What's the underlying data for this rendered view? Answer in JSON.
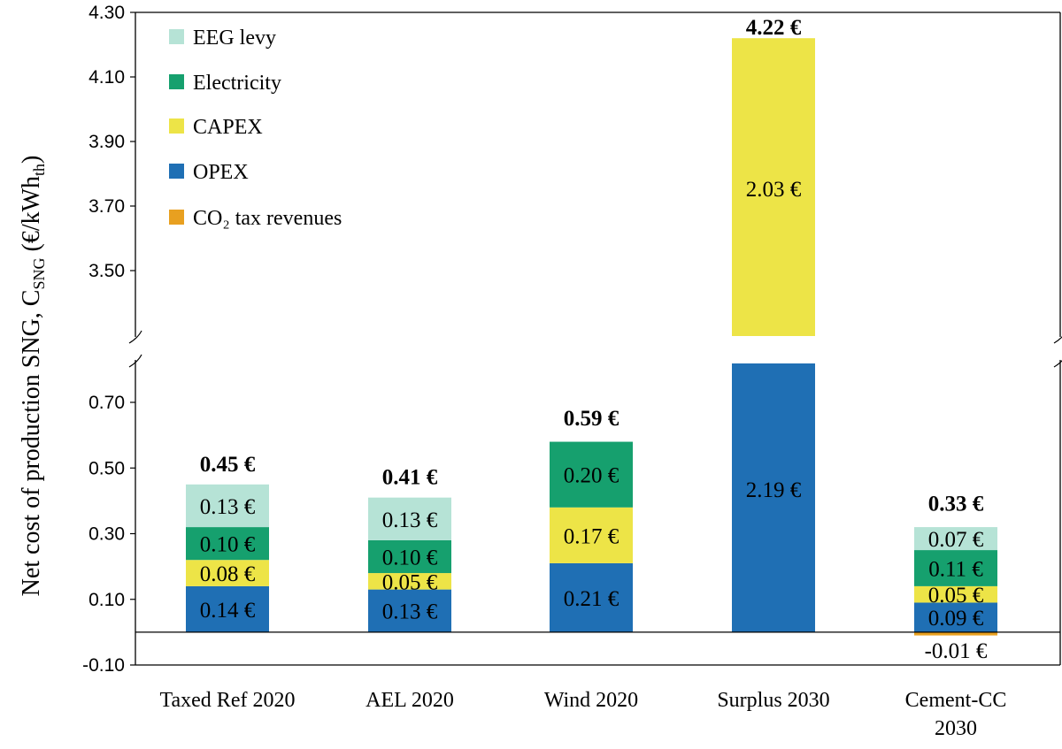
{
  "chart_data": {
    "type": "bar",
    "stacked": true,
    "ylabel": {
      "main": "Net cost of production SNG, C",
      "sub": "SNG",
      "unit_open": " (€/kWh",
      "unit_sub": "th",
      "unit_close": ")"
    },
    "y_axis_break": {
      "lower_range": [
        -0.1,
        0.8
      ],
      "upper_range": [
        3.32,
        4.3
      ]
    },
    "y_ticks_lower": [
      "0.70",
      "0.50",
      "0.30",
      "0.10",
      "-0.10"
    ],
    "y_ticks_upper": [
      "4.30",
      "4.10",
      "3.90",
      "3.70",
      "3.50"
    ],
    "categories": [
      {
        "lines": [
          "Taxed Ref 2020"
        ]
      },
      {
        "lines": [
          "AEL 2020"
        ]
      },
      {
        "lines": [
          "Wind 2020"
        ]
      },
      {
        "lines": [
          "Surplus 2030"
        ]
      },
      {
        "lines": [
          "Cement-CC",
          "2030"
        ]
      }
    ],
    "series": [
      {
        "name": "CO₂ tax revenues",
        "color": "#E8A020",
        "values": [
          0,
          0,
          0,
          0,
          -0.01
        ]
      },
      {
        "name": "OPEX",
        "color": "#1F6FB4",
        "values": [
          0.14,
          0.13,
          0.21,
          2.19,
          0.09
        ]
      },
      {
        "name": "CAPEX",
        "color": "#EDE447",
        "values": [
          0.08,
          0.05,
          0.17,
          2.03,
          0.05
        ]
      },
      {
        "name": "Electricity",
        "color": "#16A06E",
        "values": [
          0.1,
          0.1,
          0.2,
          0,
          0.11
        ]
      },
      {
        "name": "EEG levy",
        "color": "#B6E3D6",
        "values": [
          0.13,
          0.13,
          0,
          0,
          0.07
        ]
      }
    ],
    "legend_order": [
      "EEG levy",
      "Electricity",
      "CAPEX",
      "OPEX",
      "CO₂ tax revenues"
    ],
    "data_labels": [
      [
        "",
        "0.14 €",
        "0.08 €",
        "0.10 €",
        "0.13 €"
      ],
      [
        "",
        "0.13 €",
        "0.05 €",
        "0.10 €",
        "0.13 €"
      ],
      [
        "",
        "0.21 €",
        "0.17 €",
        "0.20 €",
        ""
      ],
      [
        "",
        "2.19 €",
        "2.03 €",
        "",
        ""
      ],
      [
        "-0.01 €",
        "0.09 €",
        "0.05 €",
        "0.11 €",
        "0.07 €"
      ]
    ],
    "totals": [
      "0.45 €",
      "0.41 €",
      "0.59 €",
      "4.22 €",
      "0.33 €"
    ],
    "total_values": [
      0.45,
      0.41,
      0.59,
      4.22,
      0.33
    ],
    "legend_position": "top-left"
  }
}
